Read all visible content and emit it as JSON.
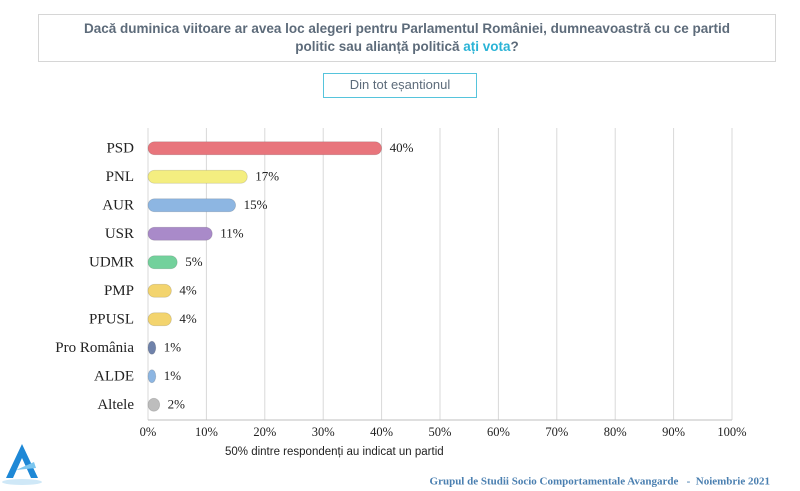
{
  "chart_data": {
    "type": "bar",
    "orientation": "horizontal",
    "title": "Dacă duminica viitoare ar avea loc alegeri pentru Parlamentul României, dumneavoastră cu ce partid politic sau alianță politică",
    "title_emphasis": "ați vota",
    "title_end": "?",
    "subtitle": "Din tot eșantionul",
    "categories": [
      "PSD",
      "PNL",
      "AUR",
      "USR",
      "UDMR",
      "PMP",
      "PPUSL",
      "Pro România",
      "ALDE",
      "Altele"
    ],
    "values": [
      40,
      17,
      15,
      11,
      5,
      4,
      4,
      1,
      1,
      2
    ],
    "value_labels": [
      "40%",
      "17%",
      "15%",
      "11%",
      "5%",
      "4%",
      "4%",
      "1%",
      "1%",
      "2%"
    ],
    "colors": [
      "#e8757c",
      "#f4ee80",
      "#8db6e2",
      "#a98ac9",
      "#73d19c",
      "#f3d46e",
      "#f3d46e",
      "#6f82aa",
      "#8db6e2",
      "#bdbdbd"
    ],
    "xlim": [
      0,
      100
    ],
    "xticks": [
      {
        "value": 0,
        "label": "0%"
      },
      {
        "value": 10,
        "label": "10%"
      },
      {
        "value": 20,
        "label": "20%"
      },
      {
        "value": 30,
        "label": "30%"
      },
      {
        "value": 40,
        "label": "40%"
      },
      {
        "value": 50,
        "label": "50%"
      },
      {
        "value": 60,
        "label": "60%"
      },
      {
        "value": 70,
        "label": "70%"
      },
      {
        "value": 80,
        "label": "80%"
      },
      {
        "value": 90,
        "label": "90%"
      },
      {
        "value": 100,
        "label": "100%"
      }
    ],
    "grid": true,
    "note": "50% dintre respondenți au indicat un partid",
    "footer": "Grupul de Studii Socio Comportamentale Avangarde   -  Noiembrie 2021"
  }
}
